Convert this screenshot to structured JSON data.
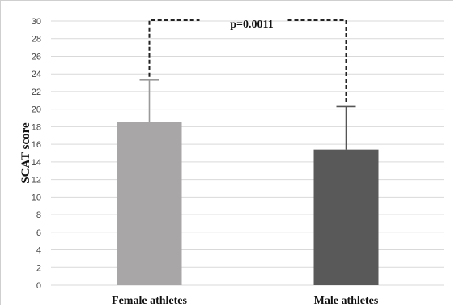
{
  "chart_data": {
    "type": "bar",
    "categories": [
      "Female athletes",
      "Male athletes"
    ],
    "values": [
      18.5,
      15.4
    ],
    "error_upper": [
      23.3,
      20.3
    ],
    "bar_colors": [
      "#a8a6a6",
      "#595959"
    ],
    "error_color": "#888888",
    "ylabel": "SCAT score",
    "ylim": [
      0,
      30
    ],
    "yticks": [
      0,
      2,
      4,
      6,
      8,
      10,
      12,
      14,
      16,
      18,
      20,
      22,
      24,
      26,
      28,
      30
    ],
    "grid": true,
    "annotation": "p=0.0011"
  }
}
